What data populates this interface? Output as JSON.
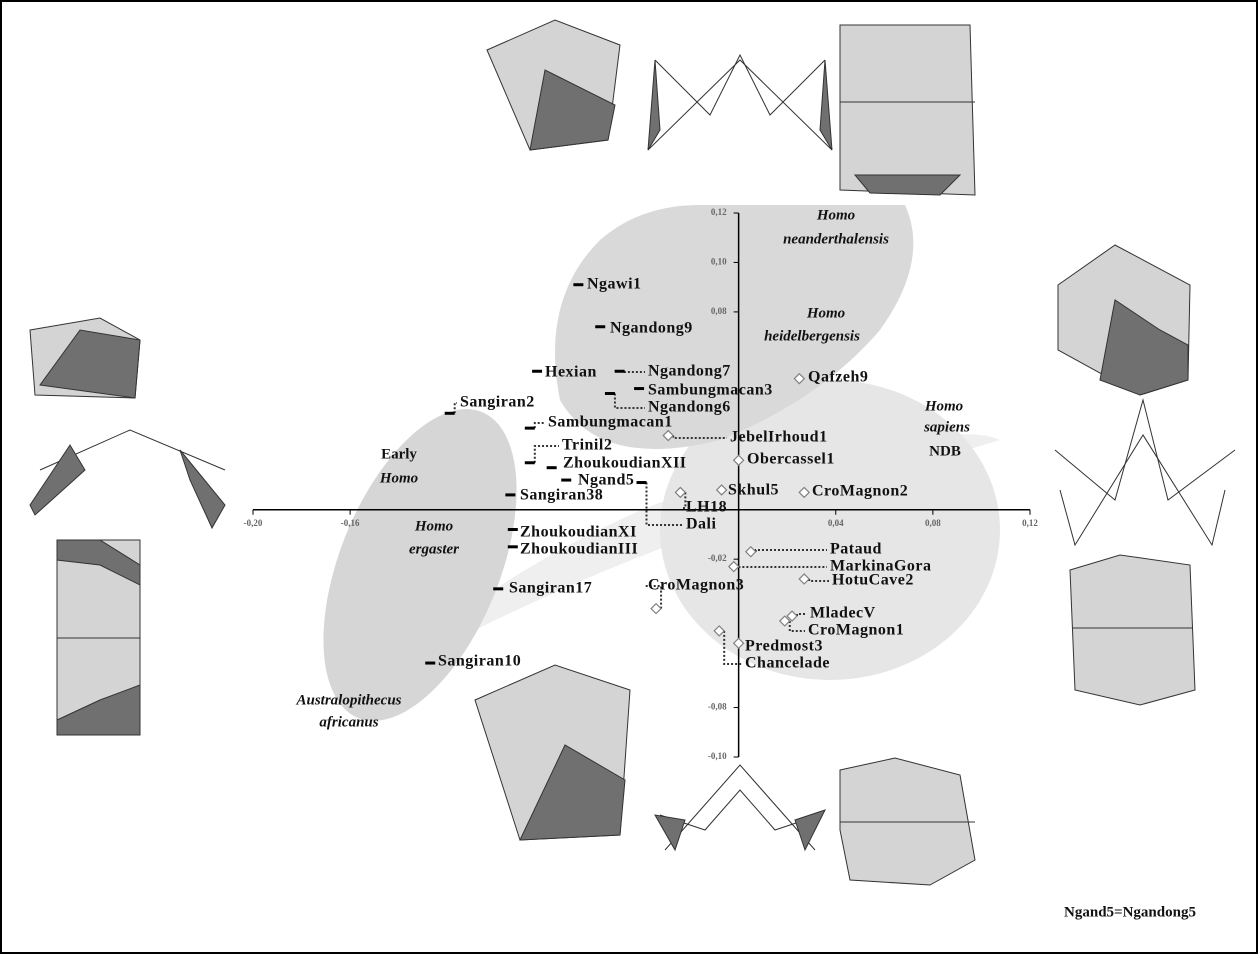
{
  "chart_data": {
    "type": "scatter",
    "xlim": [
      -0.2,
      0.12
    ],
    "ylim": [
      -0.1,
      0.12
    ],
    "xticks": [
      {
        "value": -0.2,
        "label": "-0,20"
      },
      {
        "value": -0.16,
        "label": "-0,16"
      },
      {
        "value": 0.04,
        "label": "0,04"
      },
      {
        "value": 0.08,
        "label": "0,08"
      },
      {
        "value": 0.12,
        "label": "0,12"
      }
    ],
    "yticks": [
      {
        "value": 0.12,
        "label": "0,12"
      },
      {
        "value": 0.1,
        "label": "0,10"
      },
      {
        "value": 0.08,
        "label": "0,08"
      },
      {
        "value": -0.02,
        "label": "-0,02"
      },
      {
        "value": -0.08,
        "label": "-0,08"
      },
      {
        "value": -0.1,
        "label": "-0,10"
      }
    ],
    "series": [
      {
        "marker": "dash",
        "color": "#000000",
        "labels": [
          "Ngawi1",
          "Ngandong9",
          "Hexian",
          "Ngandong7",
          "Sambungmacan3",
          "Ngandong6",
          "Sangiran2",
          "Sambungmacan1",
          "Trinil2",
          "ZhoukoudianXII",
          "Ngand5",
          "Sangiran38",
          "Dali",
          "ZhoukoudianXI",
          "ZhoukoudianIII",
          "Sangiran17",
          "Sangiran10"
        ],
        "x": [
          -0.066,
          -0.057,
          -0.083,
          -0.049,
          -0.041,
          -0.053,
          -0.119,
          -0.086,
          -0.086,
          -0.077,
          -0.071,
          -0.094,
          -0.04,
          -0.093,
          -0.093,
          -0.099,
          -0.127
        ],
        "values": [
          0.091,
          0.074,
          0.056,
          0.056,
          0.049,
          0.047,
          0.039,
          0.033,
          0.019,
          0.017,
          0.012,
          0.006,
          0.011,
          -0.008,
          -0.015,
          -0.032,
          -0.062
        ]
      },
      {
        "marker": "diamond",
        "color": "#808080",
        "labels": [
          "Qafzeh9",
          "JebelIrhoud1",
          "Obercassel1",
          "LH18",
          "Skhul5",
          "CroMagnon2",
          "Pataud",
          "MarkinaGora",
          "HotuCave2",
          "CroMagnon3",
          "MladecV",
          "CroMagnon1",
          "Predmost3",
          "Chancelade"
        ],
        "x": [
          0.025,
          -0.029,
          0.0,
          -0.024,
          -0.007,
          0.027,
          0.005,
          -0.002,
          0.027,
          -0.034,
          0.022,
          0.019,
          0.0,
          -0.008
        ],
        "values": [
          0.053,
          0.03,
          0.02,
          0.007,
          0.008,
          0.007,
          -0.017,
          -0.023,
          -0.028,
          -0.04,
          -0.043,
          -0.045,
          -0.054,
          -0.049
        ]
      }
    ],
    "annotations": [
      "Homo",
      "neanderthalensis",
      "Homo",
      "heidelbergensis",
      "Homo",
      "sapiens",
      "NDB",
      "Early",
      "Homo",
      "Homo",
      "ergaster",
      "Australopithecus",
      "africanus"
    ],
    "note": "Ngand5=Ngandong5"
  }
}
